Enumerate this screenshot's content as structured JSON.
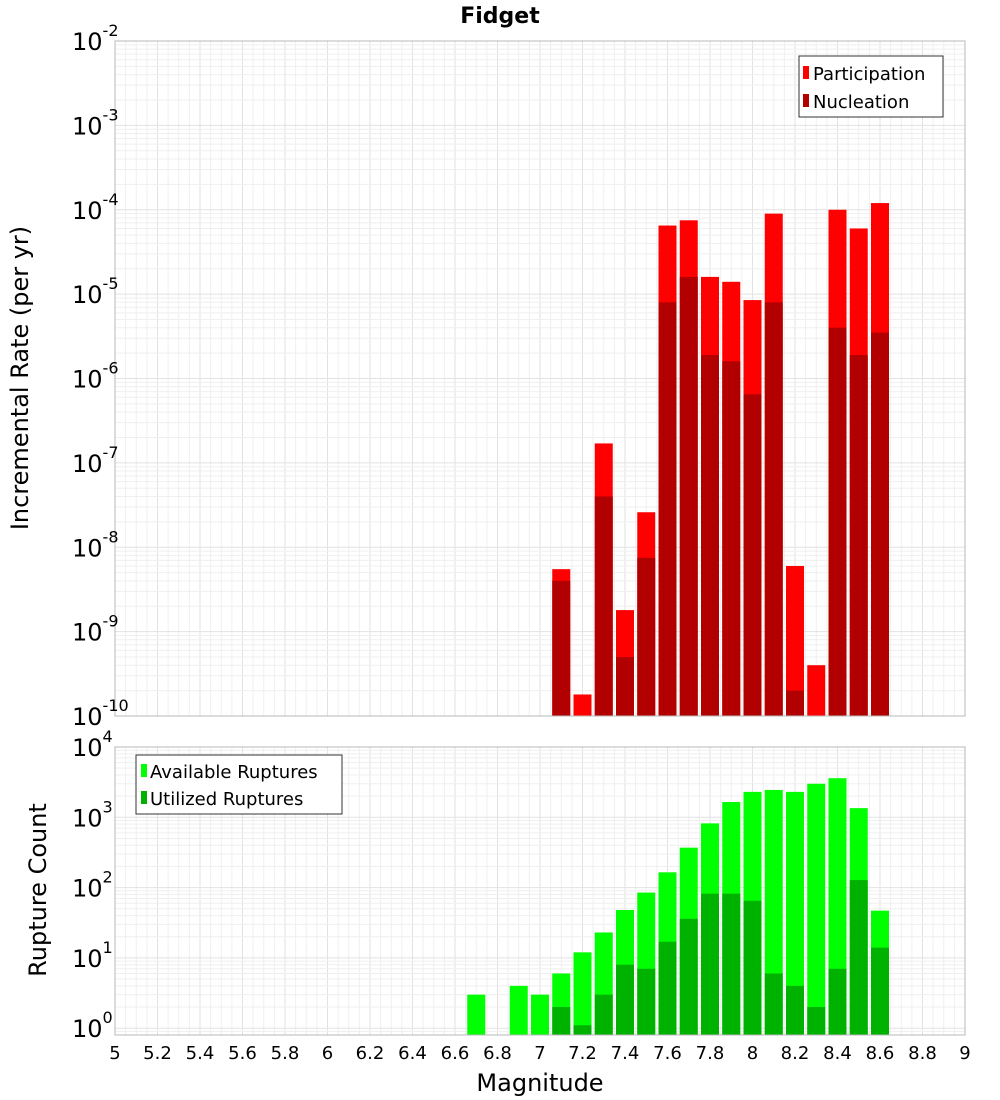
{
  "chart_data": [
    {
      "type": "bar",
      "title": "Fidget",
      "xlabel": "",
      "ylabel": "Incremental Rate (per yr)",
      "yscale": "log",
      "ylim": [
        1e-10,
        0.01
      ],
      "xlim": [
        5,
        9
      ],
      "ytick_base": "10",
      "ytick_exponents": [
        "-10",
        "-9",
        "-8",
        "-7",
        "-6",
        "-5",
        "-4",
        "-3",
        "-2"
      ],
      "legend_position": "top-right",
      "series": [
        {
          "name": "Participation",
          "color": "#ff0000",
          "x": [
            7.1,
            7.2,
            7.3,
            7.4,
            7.5,
            7.6,
            7.7,
            7.8,
            7.9,
            8.0,
            8.1,
            8.2,
            8.3,
            8.4,
            8.5,
            8.6
          ],
          "values": [
            5.5e-09,
            1.8e-10,
            1.7e-07,
            1.8e-09,
            2.6e-08,
            6.5e-05,
            7.5e-05,
            1.6e-05,
            1.4e-05,
            8.5e-06,
            9e-05,
            6e-09,
            4e-10,
            0.0001,
            6e-05,
            0.00012
          ]
        },
        {
          "name": "Nucleation",
          "color": "#b20000",
          "x": [
            7.1,
            7.2,
            7.3,
            7.4,
            7.5,
            7.6,
            7.7,
            7.8,
            7.9,
            8.0,
            8.1,
            8.2,
            8.3,
            8.4,
            8.5,
            8.6
          ],
          "values": [
            4e-09,
            null,
            4e-08,
            5e-10,
            7.5e-09,
            8e-06,
            1.6e-05,
            1.9e-06,
            1.6e-06,
            6.5e-07,
            8e-06,
            2e-10,
            null,
            4e-06,
            1.9e-06,
            3.5e-06
          ]
        }
      ]
    },
    {
      "type": "bar",
      "title": "",
      "xlabel": "Magnitude",
      "ylabel": "Rupture Count",
      "yscale": "log",
      "ylim": [
        0.8,
        10000
      ],
      "xlim": [
        5,
        9
      ],
      "ytick_base": "10",
      "ytick_exponents": [
        "0",
        "1",
        "2",
        "3",
        "4"
      ],
      "xtick_labels": [
        "5",
        "5.2",
        "5.4",
        "5.6",
        "5.8",
        "6",
        "6.2",
        "6.4",
        "6.6",
        "6.8",
        "7",
        "7.2",
        "7.4",
        "7.6",
        "7.8",
        "8",
        "8.2",
        "8.4",
        "8.6",
        "8.8",
        "9"
      ],
      "legend_position": "top-left",
      "series": [
        {
          "name": "Available Ruptures",
          "color": "#00ff00",
          "x": [
            6.7,
            6.9,
            7.0,
            7.1,
            7.2,
            7.3,
            7.4,
            7.5,
            7.6,
            7.7,
            7.8,
            7.9,
            8.0,
            8.1,
            8.2,
            8.3,
            8.4,
            8.5,
            8.6
          ],
          "values": [
            3,
            4,
            3,
            6,
            12,
            23,
            48,
            85,
            165,
            370,
            820,
            1650,
            2300,
            2450,
            2300,
            3000,
            3600,
            1350,
            47
          ]
        },
        {
          "name": "Utilized Ruptures",
          "color": "#00b200",
          "x": [
            7.1,
            7.2,
            7.3,
            7.4,
            7.5,
            7.6,
            7.7,
            7.8,
            7.9,
            8.0,
            8.1,
            8.2,
            8.3,
            8.4,
            8.5,
            8.6
          ],
          "values": [
            2,
            1.1,
            3,
            8,
            7,
            17,
            36,
            82,
            82,
            65,
            6,
            4,
            2,
            7,
            128,
            14
          ]
        }
      ]
    }
  ]
}
